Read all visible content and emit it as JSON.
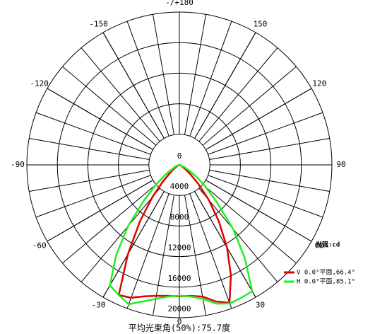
{
  "chart_data": {
    "type": "polar-line",
    "x": [
      -90,
      -85,
      -80,
      -75,
      -70,
      -65,
      -60,
      -55,
      -50,
      -45,
      -40,
      -35,
      -30,
      -25,
      -20,
      -15,
      -10,
      -5,
      0,
      5,
      10,
      15,
      20,
      25,
      30,
      35,
      40,
      45,
      50,
      55,
      60,
      65,
      70,
      75,
      80,
      85,
      90
    ],
    "series": [
      {
        "name": "V 0.0°平面,66.4°",
        "color": "#e00000",
        "values": [
          0,
          0,
          0,
          0,
          100,
          200,
          300,
          800,
          1500,
          3000,
          5500,
          9000,
          13500,
          18800,
          18500,
          17800,
          17400,
          17200,
          17200,
          17200,
          17500,
          18500,
          19200,
          16000,
          12500,
          9000,
          6000,
          3500,
          1800,
          900,
          400,
          200,
          100,
          0,
          0,
          0,
          0
        ]
      },
      {
        "name": "H 0.0°平面,85.1°",
        "color": "#22ee22",
        "values": [
          0,
          0,
          100,
          200,
          400,
          700,
          1000,
          2200,
          4000,
          6500,
          10500,
          14500,
          18200,
          18800,
          19400,
          18500,
          17800,
          17300,
          17100,
          17300,
          17800,
          18800,
          19300,
          19200,
          19100,
          15000,
          11000,
          7000,
          4500,
          2800,
          1500,
          800,
          300,
          100,
          0,
          0,
          0
        ]
      }
    ],
    "rlim": [
      0,
      20000
    ],
    "rticks": [
      0,
      4000,
      8000,
      12000,
      16000,
      20000
    ],
    "angle_ticks": [
      {
        "value": 180,
        "label": "-/+180"
      },
      150,
      120,
      90,
      60,
      30,
      0,
      -30,
      -60,
      -90,
      -120,
      -150
    ],
    "legend_title": "光强:cd",
    "legend": "lower right",
    "caption": "平均光束角(50%):75.7度"
  }
}
